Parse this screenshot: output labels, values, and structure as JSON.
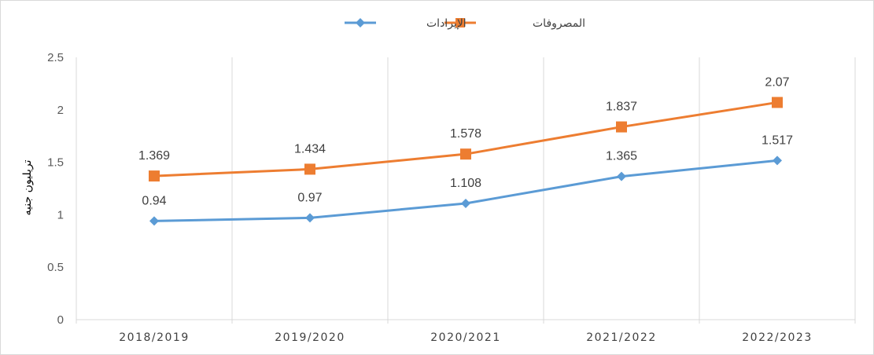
{
  "chart_data": {
    "type": "line",
    "title": "",
    "xlabel": "",
    "ylabel": "تريليون جنيه",
    "categories": [
      "2018/2019",
      "2019/2020",
      "2020/2021",
      "2021/2022",
      "2022/2023"
    ],
    "ylim": [
      0,
      2.5
    ],
    "yticks": [
      "0",
      "0.5",
      "1",
      "1.5",
      "2",
      "2.5"
    ],
    "grid": "vertical",
    "legend_position": "top",
    "series": [
      {
        "name": "الإيرادات",
        "values": [
          0.94,
          0.97,
          1.108,
          1.365,
          1.517
        ],
        "labels": [
          "0.94",
          "0.97",
          "1.108",
          "1.365",
          "1.517"
        ],
        "color": "#5b9bd5",
        "marker": "diamond"
      },
      {
        "name": "المصروفات",
        "values": [
          1.369,
          1.434,
          1.578,
          1.837,
          2.07
        ],
        "labels": [
          "1.369",
          "1.434",
          "1.578",
          "1.837",
          "2.07"
        ],
        "color": "#ed7d31",
        "marker": "square"
      }
    ]
  }
}
